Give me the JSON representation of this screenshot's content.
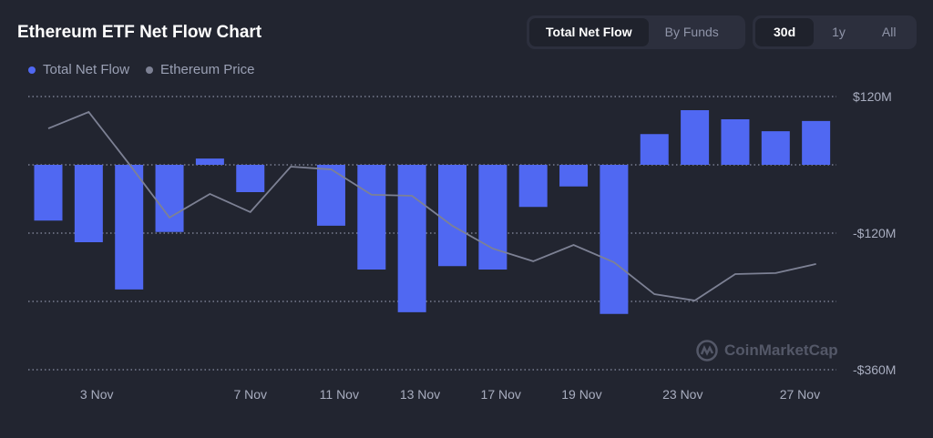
{
  "header": {
    "title": "Ethereum ETF Net Flow Chart"
  },
  "view_toggle": {
    "options": [
      "Total Net Flow",
      "By Funds"
    ],
    "selected": "Total Net Flow"
  },
  "range_toggle": {
    "options": [
      "30d",
      "1y",
      "All"
    ],
    "selected": "30d"
  },
  "watermark": "CoinMarketCap",
  "colors": {
    "flow": "#5068f2",
    "price": "#7d8194",
    "background": "#222530"
  },
  "chart_data": {
    "type": "bar+line",
    "legend_position": "top-left",
    "grid": true,
    "y_axis": {
      "ticks": [
        {
          "value": 120,
          "label": "$120M"
        },
        {
          "value": 0,
          "label": ""
        },
        {
          "value": -120,
          "label": "-$120M"
        },
        {
          "value": -240,
          "label": ""
        },
        {
          "value": -360,
          "label": "-$360M"
        }
      ],
      "ylim": [
        -360,
        120
      ],
      "unit": "USD millions",
      "position": "right"
    },
    "x_tick_labels": [
      {
        "label": "3 Nov",
        "index": 1.2
      },
      {
        "label": "7 Nov",
        "index": 5
      },
      {
        "label": "11 Nov",
        "index": 7.2
      },
      {
        "label": "13 Nov",
        "index": 9.2
      },
      {
        "label": "17 Nov",
        "index": 11.2
      },
      {
        "label": "19 Nov",
        "index": 13.2
      },
      {
        "label": "23 Nov",
        "index": 15.7
      },
      {
        "label": "27 Nov",
        "index": 18.6
      }
    ],
    "series": [
      {
        "name": "Total Net Flow",
        "type": "bar",
        "values": [
          -98,
          -136,
          -219,
          -118,
          11,
          -48,
          0,
          -107,
          -184,
          -259,
          -178,
          -184,
          -74,
          -38,
          -262,
          54,
          96,
          80,
          59,
          77
        ]
      },
      {
        "name": "Ethereum Price",
        "type": "line",
        "values": [
          3804,
          3900,
          3597,
          3284,
          3422,
          3316,
          3581,
          3565,
          3417,
          3411,
          3236,
          3103,
          3029,
          3124,
          3023,
          2837,
          2800,
          2954,
          2960,
          3013
        ]
      }
    ]
  }
}
